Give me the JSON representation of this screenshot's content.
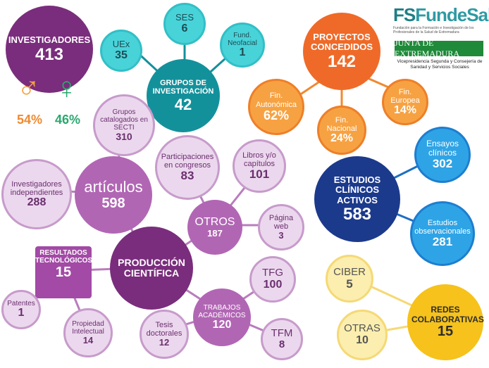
{
  "logo": {
    "brand_part1": "FS",
    "brand_part2": "FundeSalud",
    "tagline": "Fundación para la Formación e Investigación de los Profesionales de la Salud de Extremadura",
    "junta": "JUNTA DE EXTREMADURA",
    "vice": "Vicepresidencia Segunda y Consejería de Sanidad y Servicios Sociales"
  },
  "investigadores": {
    "label": "INVESTIGADORES",
    "value": "413",
    "male_pct": "54%",
    "female_pct": "46%",
    "male_icon": "male-symbol-icon",
    "female_icon": "female-symbol-icon",
    "male_color": "#f7a242",
    "female_color": "#2aa86e"
  },
  "grupos": {
    "label": "GRUPOS DE INVESTIGACIÓN",
    "value": "42",
    "uex": {
      "label": "UEx",
      "value": "35"
    },
    "ses": {
      "label": "SES",
      "value": "6"
    },
    "fund": {
      "label": "Fund. Neofacial",
      "value": "1"
    }
  },
  "proyectos": {
    "label": "PROYECTOS CONCEDIDOS",
    "value": "142",
    "autonomica": {
      "label": "Fin. Autonómica",
      "value": "62%"
    },
    "nacional": {
      "label": "Fin. Nacional",
      "value": "24%"
    },
    "europea": {
      "label": "Fin. Europea",
      "value": "14%"
    }
  },
  "estudios": {
    "label": "ESTUDIOS CLÍNICOS ACTIVOS",
    "value": "583",
    "ensayos": {
      "label": "Ensayos clínicos",
      "value": "302"
    },
    "observacionales": {
      "label": "Estudios observacionales",
      "value": "281"
    }
  },
  "redes": {
    "label": "REDES COLABORATIVAS",
    "value": "15",
    "ciber": {
      "label": "CIBER",
      "value": "5"
    },
    "otras": {
      "label": "OTRAS",
      "value": "10"
    }
  },
  "produccion": {
    "label": "PRODUCCIÓN CIENTÍFICA",
    "articulos": {
      "label": "artículos",
      "value": "598"
    },
    "grupos_secti": {
      "label": "Grupos catalogados en SECTI",
      "value": "310"
    },
    "independientes": {
      "label": "Investigadores independientes",
      "value": "288"
    },
    "otros": {
      "label": "OTROS",
      "value": "187"
    },
    "congresos": {
      "label": "Participaciones en congresos",
      "value": "83"
    },
    "libros": {
      "label": "Libros y/o capítulos",
      "value": "101"
    },
    "web": {
      "label": "Página web",
      "value": "3"
    },
    "resultados": {
      "label": "RESULTADOS TECNOLÓGICOS",
      "value": "15"
    },
    "patentes": {
      "label": "Patentes",
      "value": "1"
    },
    "propiedad": {
      "label": "Propiedad Intelectual",
      "value": "14"
    },
    "trabajos": {
      "label": "TRABAJOS ACADÉMICOS",
      "value": "120"
    },
    "tesis": {
      "label": "Tesis doctorales",
      "value": "12"
    },
    "tfg": {
      "label": "TFG",
      "value": "100"
    },
    "tfm": {
      "label": "TFM",
      "value": "8"
    }
  }
}
